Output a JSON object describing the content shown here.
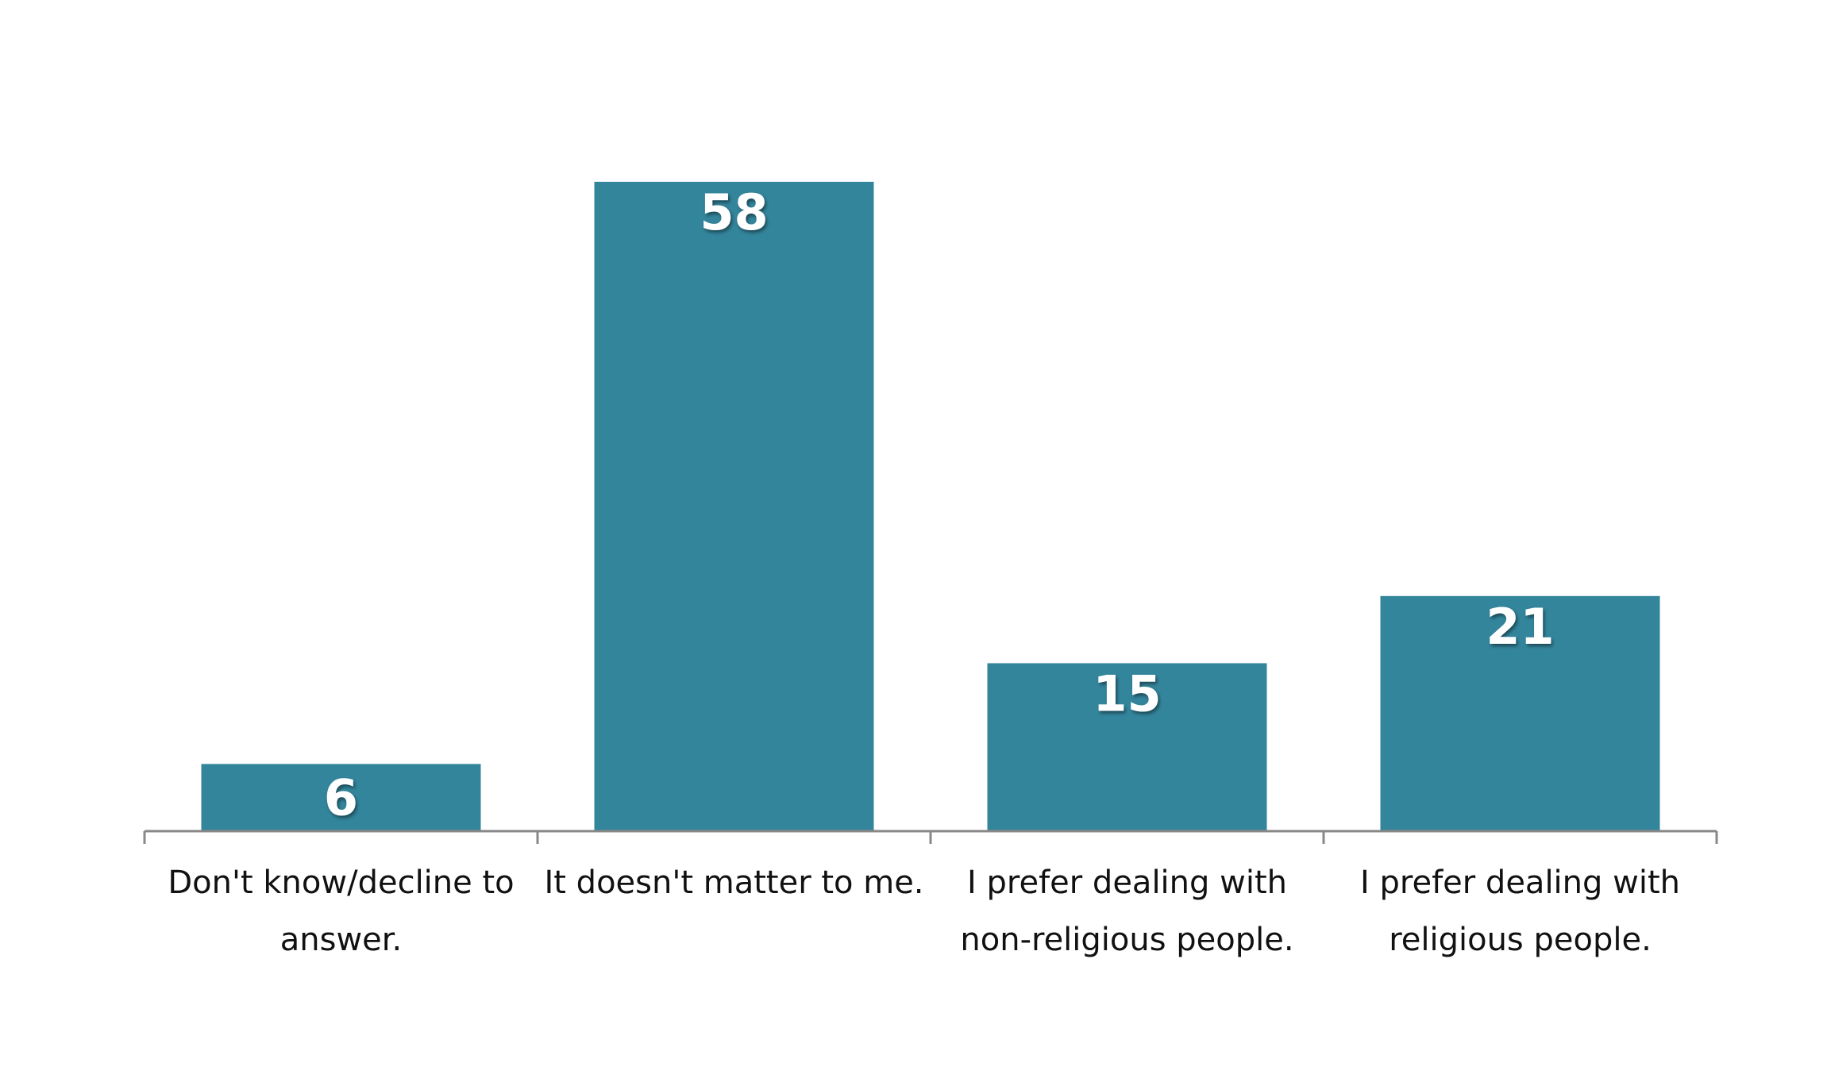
{
  "chart_data": {
    "type": "bar",
    "title": "",
    "xlabel": "",
    "ylabel": "",
    "categories": [
      [
        "Don't know/decline to",
        "answer."
      ],
      [
        "It doesn't matter to me."
      ],
      [
        "I prefer dealing with",
        "non-religious people."
      ],
      [
        "I prefer dealing with",
        "religious people."
      ]
    ],
    "values": [
      6,
      58,
      15,
      21
    ],
    "ylim": [
      0,
      58
    ],
    "grid": false,
    "legend": "none",
    "colors": {
      "bar": "#33859c",
      "axis": "#888888",
      "data_label": "#ffffff",
      "category_label": "#111111"
    }
  }
}
